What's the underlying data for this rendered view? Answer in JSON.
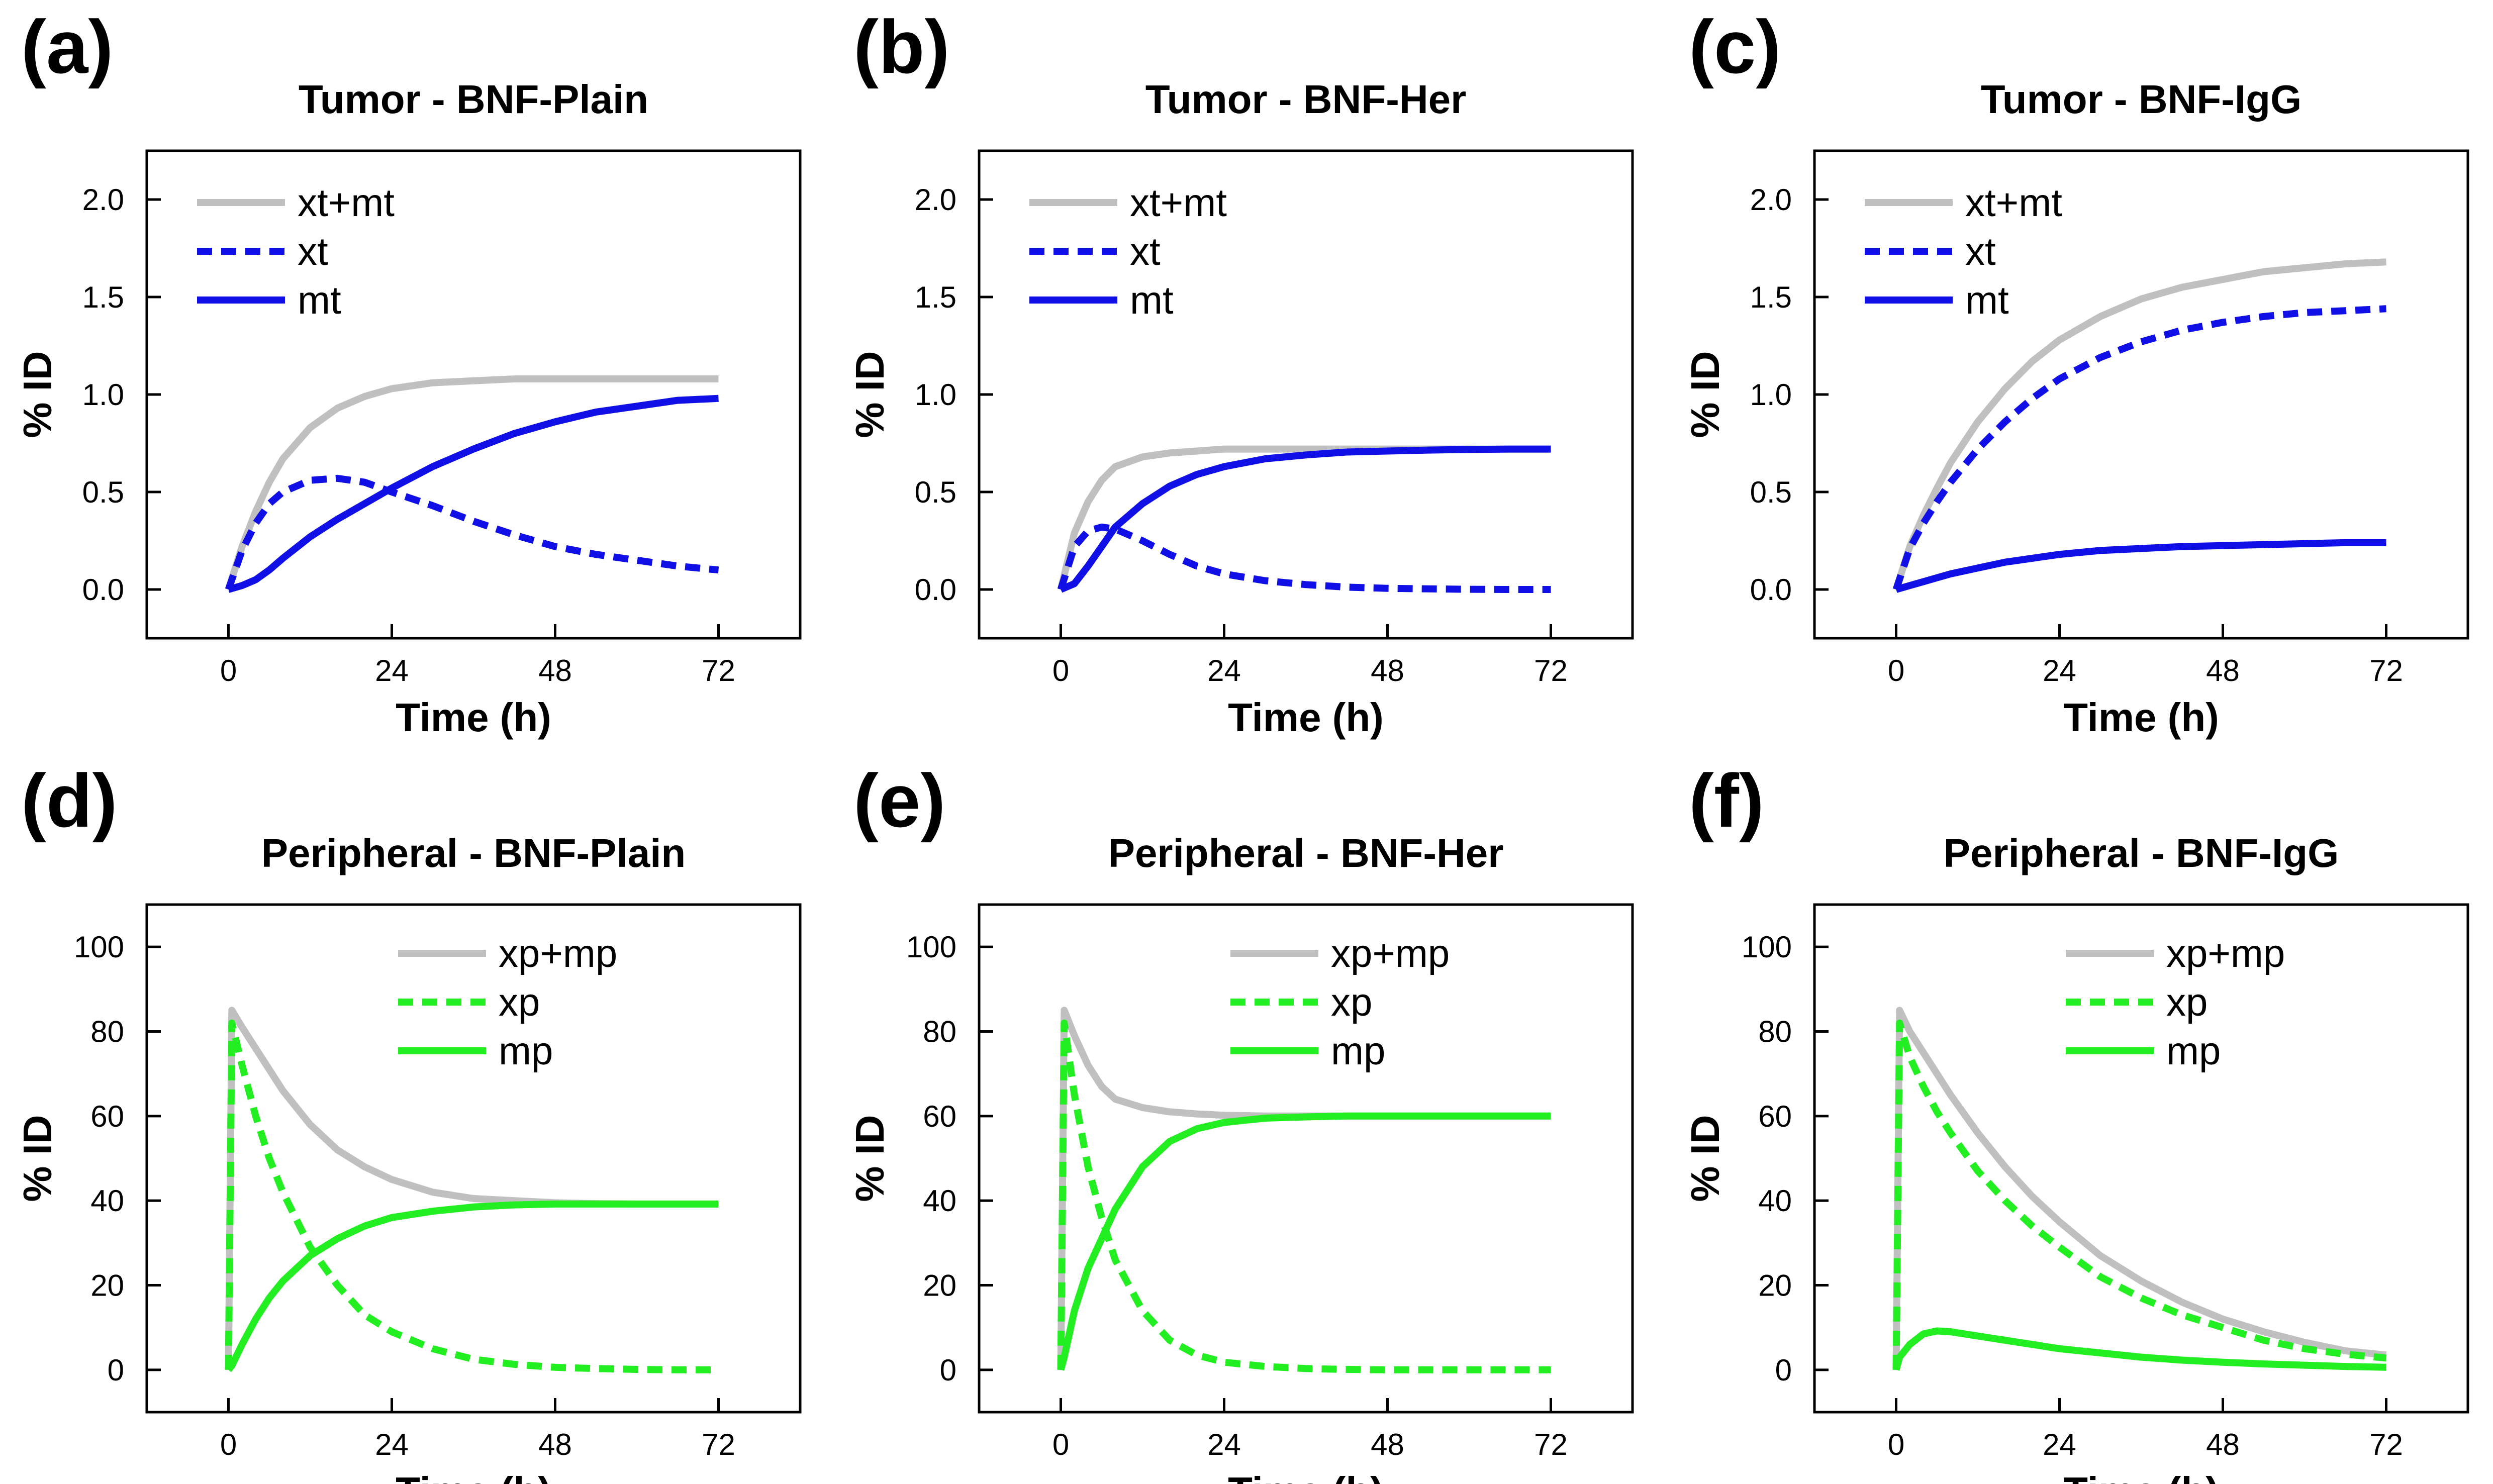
{
  "colors": {
    "total": "#c0c0c0",
    "tumor": "#1010e6",
    "peripheral": "#22ee22",
    "axis": "#000000"
  },
  "chart_data": [
    {
      "panel": "(a)",
      "type": "line",
      "title": "Tumor - BNF-Plain",
      "xlabel": "Time (h)",
      "ylabel": "% ID",
      "xlim": [
        -12,
        84
      ],
      "ylim": [
        -0.25,
        2.25
      ],
      "xticks": [
        0,
        24,
        48,
        72
      ],
      "yticks": [
        0.0,
        0.5,
        1.0,
        1.5,
        2.0
      ],
      "ytick_labels": [
        "0.0",
        "0.5",
        "1.0",
        "1.5",
        "2.0"
      ],
      "xtick_labels": [
        "0",
        "24",
        "48",
        "72"
      ],
      "legend_position": "top-left",
      "series": [
        {
          "name": "xt+mt",
          "role": "total",
          "style": "solid",
          "x": [
            0,
            2,
            4,
            6,
            8,
            12,
            16,
            20,
            24,
            30,
            36,
            42,
            48,
            54,
            60,
            66,
            72
          ],
          "y": [
            0,
            0.22,
            0.4,
            0.55,
            0.67,
            0.83,
            0.93,
            0.99,
            1.03,
            1.06,
            1.07,
            1.08,
            1.08,
            1.08,
            1.08,
            1.08,
            1.08
          ]
        },
        {
          "name": "xt",
          "role": "tumor",
          "style": "dashed",
          "x": [
            0,
            2,
            4,
            6,
            8,
            12,
            16,
            20,
            24,
            30,
            36,
            42,
            48,
            54,
            60,
            66,
            72
          ],
          "y": [
            0,
            0.2,
            0.34,
            0.44,
            0.5,
            0.56,
            0.57,
            0.55,
            0.5,
            0.43,
            0.35,
            0.28,
            0.22,
            0.18,
            0.15,
            0.12,
            0.1
          ]
        },
        {
          "name": "mt",
          "role": "tumor",
          "style": "solid",
          "x": [
            0,
            2,
            4,
            6,
            8,
            12,
            16,
            20,
            24,
            30,
            36,
            42,
            48,
            54,
            60,
            66,
            72
          ],
          "y": [
            0,
            0.02,
            0.05,
            0.1,
            0.16,
            0.27,
            0.36,
            0.44,
            0.52,
            0.63,
            0.72,
            0.8,
            0.86,
            0.91,
            0.94,
            0.97,
            0.98
          ]
        }
      ]
    },
    {
      "panel": "(b)",
      "type": "line",
      "title": "Tumor - BNF-Her",
      "xlabel": "Time (h)",
      "ylabel": "% ID",
      "xlim": [
        -12,
        84
      ],
      "ylim": [
        -0.25,
        2.25
      ],
      "xticks": [
        0,
        24,
        48,
        72
      ],
      "yticks": [
        0.0,
        0.5,
        1.0,
        1.5,
        2.0
      ],
      "ytick_labels": [
        "0.0",
        "0.5",
        "1.0",
        "1.5",
        "2.0"
      ],
      "xtick_labels": [
        "0",
        "24",
        "48",
        "72"
      ],
      "legend_position": "top-left",
      "series": [
        {
          "name": "xt+mt",
          "role": "total",
          "style": "solid",
          "x": [
            0,
            2,
            4,
            6,
            8,
            12,
            16,
            20,
            24,
            30,
            36,
            42,
            48,
            54,
            60,
            66,
            72
          ],
          "y": [
            0,
            0.29,
            0.45,
            0.56,
            0.63,
            0.68,
            0.7,
            0.71,
            0.72,
            0.72,
            0.72,
            0.72,
            0.72,
            0.72,
            0.72,
            0.72,
            0.72
          ]
        },
        {
          "name": "xt",
          "role": "tumor",
          "style": "dashed",
          "x": [
            0,
            2,
            4,
            6,
            8,
            12,
            16,
            20,
            24,
            30,
            36,
            42,
            48,
            54,
            60,
            66,
            72
          ],
          "y": [
            0,
            0.22,
            0.3,
            0.32,
            0.31,
            0.25,
            0.18,
            0.12,
            0.08,
            0.045,
            0.025,
            0.012,
            0.006,
            0.003,
            0.001,
            0.0,
            0.0
          ]
        },
        {
          "name": "mt",
          "role": "tumor",
          "style": "solid",
          "x": [
            0,
            2,
            4,
            6,
            8,
            12,
            16,
            20,
            24,
            30,
            36,
            42,
            48,
            54,
            60,
            66,
            72
          ],
          "y": [
            0,
            0.03,
            0.12,
            0.22,
            0.32,
            0.44,
            0.53,
            0.59,
            0.63,
            0.67,
            0.69,
            0.705,
            0.71,
            0.715,
            0.718,
            0.72,
            0.72
          ]
        }
      ]
    },
    {
      "panel": "(c)",
      "type": "line",
      "title": "Tumor - BNF-IgG",
      "xlabel": "Time (h)",
      "ylabel": "% ID",
      "xlim": [
        -12,
        84
      ],
      "ylim": [
        -0.25,
        2.25
      ],
      "xticks": [
        0,
        24,
        48,
        72
      ],
      "yticks": [
        0.0,
        0.5,
        1.0,
        1.5,
        2.0
      ],
      "ytick_labels": [
        "0.0",
        "0.5",
        "1.0",
        "1.5",
        "2.0"
      ],
      "xtick_labels": [
        "0",
        "24",
        "48",
        "72"
      ],
      "legend_position": "top-left",
      "series": [
        {
          "name": "xt+mt",
          "role": "total",
          "style": "solid",
          "x": [
            0,
            2,
            4,
            6,
            8,
            12,
            16,
            20,
            24,
            30,
            36,
            42,
            48,
            54,
            60,
            66,
            72
          ],
          "y": [
            0,
            0.22,
            0.38,
            0.52,
            0.65,
            0.86,
            1.03,
            1.17,
            1.28,
            1.4,
            1.49,
            1.55,
            1.59,
            1.63,
            1.65,
            1.67,
            1.68
          ]
        },
        {
          "name": "xt",
          "role": "tumor",
          "style": "dashed",
          "x": [
            0,
            2,
            4,
            6,
            8,
            12,
            16,
            20,
            24,
            30,
            36,
            42,
            48,
            54,
            60,
            66,
            72
          ],
          "y": [
            0,
            0.21,
            0.34,
            0.45,
            0.55,
            0.72,
            0.86,
            0.98,
            1.08,
            1.19,
            1.27,
            1.33,
            1.37,
            1.4,
            1.42,
            1.43,
            1.44
          ]
        },
        {
          "name": "mt",
          "role": "tumor",
          "style": "solid",
          "x": [
            0,
            2,
            4,
            6,
            8,
            12,
            16,
            20,
            24,
            30,
            36,
            42,
            48,
            54,
            60,
            66,
            72
          ],
          "y": [
            0,
            0.02,
            0.04,
            0.06,
            0.08,
            0.11,
            0.14,
            0.16,
            0.18,
            0.2,
            0.21,
            0.22,
            0.225,
            0.23,
            0.235,
            0.24,
            0.24
          ]
        }
      ]
    },
    {
      "panel": "(d)",
      "type": "line",
      "title": "Peripheral - BNF-Plain",
      "xlabel": "Time (h)",
      "ylabel": "% ID",
      "xlim": [
        -12,
        84
      ],
      "ylim": [
        -10,
        110
      ],
      "xticks": [
        0,
        24,
        48,
        72
      ],
      "yticks": [
        0,
        20,
        40,
        60,
        80,
        100
      ],
      "ytick_labels": [
        "0",
        "20",
        "40",
        "60",
        "80",
        "100"
      ],
      "xtick_labels": [
        "0",
        "24",
        "48",
        "72"
      ],
      "legend_position": "top-center",
      "series": [
        {
          "name": "xp+mp",
          "role": "total",
          "style": "solid",
          "x": [
            0,
            0.5,
            2,
            4,
            6,
            8,
            12,
            16,
            20,
            24,
            30,
            36,
            42,
            48,
            54,
            60,
            66,
            72
          ],
          "y": [
            0,
            85,
            81,
            76,
            71,
            66,
            58,
            52,
            48,
            45,
            42,
            40.5,
            40,
            39.5,
            39.3,
            39.2,
            39.2,
            39.2
          ]
        },
        {
          "name": "xp",
          "role": "peripheral",
          "style": "dashed",
          "x": [
            0,
            0.5,
            2,
            4,
            6,
            8,
            12,
            16,
            20,
            24,
            30,
            36,
            42,
            48,
            54,
            60,
            66,
            72
          ],
          "y": [
            0,
            82,
            72,
            60,
            50,
            42,
            29,
            20,
            13,
            9,
            5,
            2.5,
            1.3,
            0.6,
            0.3,
            0.1,
            0,
            0
          ]
        },
        {
          "name": "mp",
          "role": "peripheral",
          "style": "solid",
          "x": [
            0,
            0.5,
            2,
            4,
            6,
            8,
            12,
            16,
            20,
            24,
            30,
            36,
            42,
            48,
            54,
            60,
            66,
            72
          ],
          "y": [
            0,
            1,
            6,
            12,
            17,
            21,
            27,
            31,
            34,
            36,
            37.5,
            38.5,
            39,
            39.2,
            39.2,
            39.2,
            39.2,
            39.2
          ]
        }
      ]
    },
    {
      "panel": "(e)",
      "type": "line",
      "title": "Peripheral - BNF-Her",
      "xlabel": "Time (h)",
      "ylabel": "% ID",
      "xlim": [
        -12,
        84
      ],
      "ylim": [
        -10,
        110
      ],
      "xticks": [
        0,
        24,
        48,
        72
      ],
      "yticks": [
        0,
        20,
        40,
        60,
        80,
        100
      ],
      "ytick_labels": [
        "0",
        "20",
        "40",
        "60",
        "80",
        "100"
      ],
      "xtick_labels": [
        "0",
        "24",
        "48",
        "72"
      ],
      "legend_position": "top-center",
      "series": [
        {
          "name": "xp+mp",
          "role": "total",
          "style": "solid",
          "x": [
            0,
            0.5,
            2,
            4,
            6,
            8,
            12,
            16,
            20,
            24,
            30,
            36,
            42,
            48,
            54,
            60,
            66,
            72
          ],
          "y": [
            0,
            85,
            79,
            72,
            67,
            64,
            62,
            61,
            60.5,
            60.2,
            60,
            60,
            60,
            60,
            60,
            60,
            60,
            60
          ]
        },
        {
          "name": "xp",
          "role": "peripheral",
          "style": "dashed",
          "x": [
            0,
            0.5,
            2,
            4,
            6,
            8,
            12,
            16,
            20,
            24,
            30,
            36,
            42,
            48,
            54,
            60,
            66,
            72
          ],
          "y": [
            0,
            82,
            65,
            48,
            36,
            26,
            14,
            7,
            3.5,
            1.8,
            0.8,
            0.3,
            0.1,
            0,
            0,
            0,
            0,
            0
          ]
        },
        {
          "name": "mp",
          "role": "peripheral",
          "style": "solid",
          "x": [
            0,
            0.5,
            2,
            4,
            6,
            8,
            12,
            16,
            20,
            24,
            30,
            36,
            42,
            48,
            54,
            60,
            66,
            72
          ],
          "y": [
            0,
            3,
            14,
            24,
            31,
            38,
            48,
            54,
            57,
            58.5,
            59.5,
            59.8,
            60,
            60,
            60,
            60,
            60,
            60
          ]
        }
      ]
    },
    {
      "panel": "(f)",
      "type": "line",
      "title": "Peripheral - BNF-IgG",
      "xlabel": "Time (h)",
      "ylabel": "% ID",
      "xlim": [
        -12,
        84
      ],
      "ylim": [
        -10,
        110
      ],
      "xticks": [
        0,
        24,
        48,
        72
      ],
      "yticks": [
        0,
        20,
        40,
        60,
        80,
        100
      ],
      "ytick_labels": [
        "0",
        "20",
        "40",
        "60",
        "80",
        "100"
      ],
      "xtick_labels": [
        "0",
        "24",
        "48",
        "72"
      ],
      "legend_position": "top-center",
      "series": [
        {
          "name": "xp+mp",
          "role": "total",
          "style": "solid",
          "x": [
            0,
            0.5,
            2,
            4,
            6,
            8,
            12,
            16,
            20,
            24,
            30,
            36,
            42,
            48,
            54,
            60,
            66,
            72
          ],
          "y": [
            0,
            85,
            80,
            75,
            70,
            65,
            56,
            48,
            41,
            35,
            27,
            21,
            16,
            12,
            9,
            6.5,
            4.5,
            3.5
          ]
        },
        {
          "name": "xp",
          "role": "peripheral",
          "style": "dashed",
          "x": [
            0,
            0.5,
            2,
            4,
            6,
            8,
            12,
            16,
            20,
            24,
            30,
            36,
            42,
            48,
            54,
            60,
            66,
            72
          ],
          "y": [
            0,
            82,
            74,
            67,
            61,
            56,
            47,
            40,
            34,
            29,
            22,
            17,
            13,
            10,
            7,
            5,
            3.7,
            2.8
          ]
        },
        {
          "name": "mp",
          "role": "peripheral",
          "style": "solid",
          "x": [
            0,
            0.5,
            2,
            4,
            6,
            8,
            12,
            16,
            20,
            24,
            30,
            36,
            42,
            48,
            54,
            60,
            66,
            72
          ],
          "y": [
            0,
            3,
            6,
            8.5,
            9.2,
            9,
            8,
            7,
            6,
            5,
            4,
            3,
            2.3,
            1.8,
            1.4,
            1.1,
            0.8,
            0.6
          ]
        }
      ]
    }
  ]
}
